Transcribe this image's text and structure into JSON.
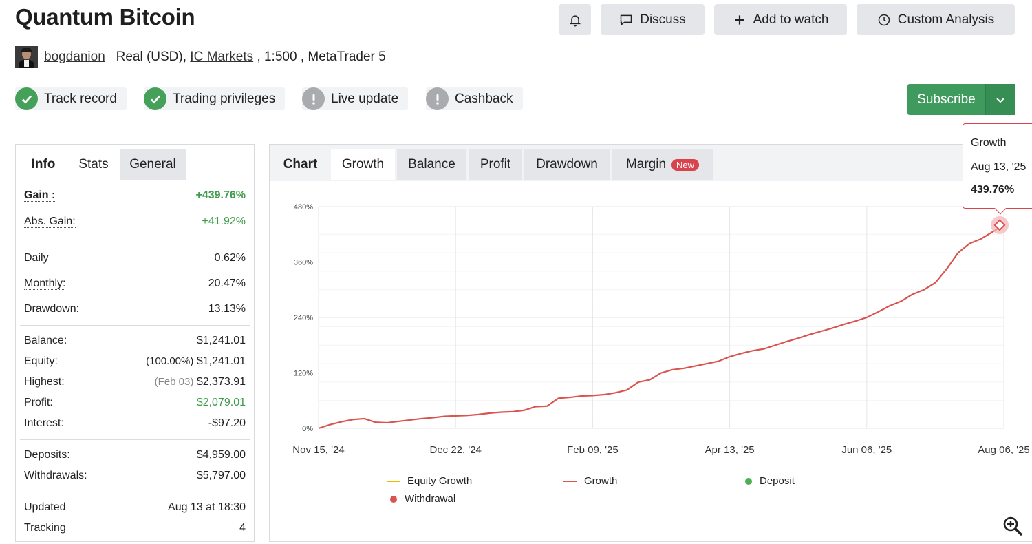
{
  "header": {
    "title": "Quantum Bitcoin",
    "buttons": {
      "discuss": "Discuss",
      "watch": "Add to watch",
      "custom": "Custom Analysis"
    },
    "icons": {
      "bell": "bell-icon",
      "discuss": "chat-icon",
      "watch": "plus-icon",
      "custom": "clock-icon"
    }
  },
  "author": {
    "name": "bogdanion",
    "account_type": "Real (USD),",
    "broker": "IC Markets",
    "leverage": ", 1:500 , MetaTrader 5"
  },
  "badges": [
    {
      "label": "Track record",
      "status": "ok"
    },
    {
      "label": "Trading privileges",
      "status": "ok"
    },
    {
      "label": "Live update",
      "status": "warning"
    },
    {
      "label": "Cashback",
      "status": "warning"
    }
  ],
  "subscribe": {
    "label": "Subscribe"
  },
  "left_tabs": {
    "info": "Info",
    "stats": "Stats",
    "general": "General"
  },
  "stats": {
    "gain": {
      "label": "Gain :",
      "value": "+439.76%"
    },
    "abs_gain": {
      "label": "Abs. Gain:",
      "value": "+41.92%"
    },
    "daily": {
      "label": "Daily",
      "value": "0.62%"
    },
    "monthly": {
      "label": "Monthly:",
      "value": "20.47%"
    },
    "drawdown": {
      "label": "Drawdown:",
      "value": "13.13%"
    },
    "balance": {
      "label": "Balance:",
      "value": "$1,241.01"
    },
    "equity": {
      "label": "Equity:",
      "note": "(100.00%)",
      "value": "$1,241.01"
    },
    "highest": {
      "label": "Highest:",
      "note": "(Feb 03)",
      "value": "$2,373.91"
    },
    "profit": {
      "label": "Profit:",
      "value": "$2,079.01"
    },
    "interest": {
      "label": "Interest:",
      "value": "-$97.20"
    },
    "deposits": {
      "label": "Deposits:",
      "value": "$4,959.00"
    },
    "withdrawals": {
      "label": "Withdrawals:",
      "value": "$5,797.00"
    },
    "updated": {
      "label": "Updated",
      "value": "Aug 13 at 18:30"
    },
    "tracking": {
      "label": "Tracking",
      "value": "4"
    }
  },
  "chart_tabs": {
    "chart": "Chart",
    "growth": "Growth",
    "balance": "Balance",
    "profit": "Profit",
    "drawdown": "Drawdown",
    "margin": "Margin",
    "new_badge": "New"
  },
  "tooltip": {
    "series": "Growth",
    "date": "Aug 13, '25",
    "value": "439.76%"
  },
  "chart_data": {
    "type": "line",
    "y_ticks": [
      "0%",
      "120%",
      "240%",
      "360%",
      "480%"
    ],
    "x_ticks": [
      "Nov 15, '24",
      "Dec 22, '24",
      "Feb 09, '25",
      "Apr 13, '25",
      "Jun 06, '25",
      "Aug 06, '25"
    ],
    "ylim": [
      0,
      480
    ],
    "grid": true,
    "series": [
      {
        "name": "Growth",
        "color": "#d9534f",
        "values": [
          0,
          8,
          14,
          19,
          21,
          13,
          12,
          15,
          18,
          21,
          23,
          26,
          27,
          28,
          30,
          33,
          35,
          36,
          39,
          47,
          48,
          65,
          67,
          70,
          71,
          73,
          77,
          83,
          100,
          105,
          120,
          127,
          130,
          135,
          140,
          145,
          155,
          162,
          168,
          172,
          180,
          188,
          195,
          203,
          210,
          217,
          225,
          232,
          240,
          252,
          265,
          275,
          290,
          300,
          315,
          345,
          380,
          400,
          410,
          425,
          440
        ]
      }
    ],
    "legend": [
      "Equity Growth",
      "Growth",
      "Deposit",
      "Withdrawal"
    ],
    "legend_colors": {
      "equity_growth": "#f5b800",
      "growth": "#d9534f",
      "deposit": "#4caf50",
      "withdrawal": "#d9534f"
    }
  }
}
